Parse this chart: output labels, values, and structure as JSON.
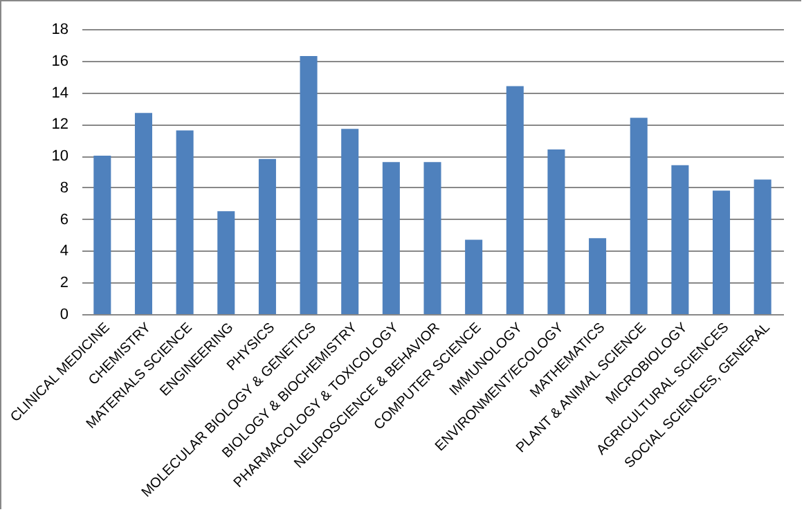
{
  "chart_data": {
    "type": "bar",
    "categories": [
      "CLINICAL MEDICINE",
      "CHEMISTRY",
      "MATERIALS SCIENCE",
      "ENGINEERING",
      "PHYSICS",
      "MOLECULAR BIOLOGY & GENETICS",
      "BIOLOGY & BIOCHEMISTRY",
      "PHARMACOLOGY & TOXICOLOGY",
      "NEUROSCIENCE  & BEHAVIOR",
      "COMPUTER SCIENCE",
      "IMMUNOLOGY",
      "ENVIRONMENT/ECOLOGY",
      "MATHEMATICS",
      "PLANT & ANIMAL SCIENCE",
      "MICROBIOLOGY",
      "AGRICULTURAL SCIENCES",
      "SOCIAL SCIENCES,  GENERAL"
    ],
    "values": [
      10.0,
      12.7,
      11.6,
      6.5,
      9.8,
      16.3,
      11.7,
      9.6,
      9.6,
      4.7,
      14.4,
      10.4,
      4.8,
      12.4,
      9.4,
      7.8,
      8.5
    ],
    "color": "#4f81bd",
    "ylim": [
      0,
      18
    ],
    "yticks": [
      0,
      2,
      4,
      6,
      8,
      10,
      12,
      14,
      16,
      18
    ],
    "grid": "y"
  }
}
